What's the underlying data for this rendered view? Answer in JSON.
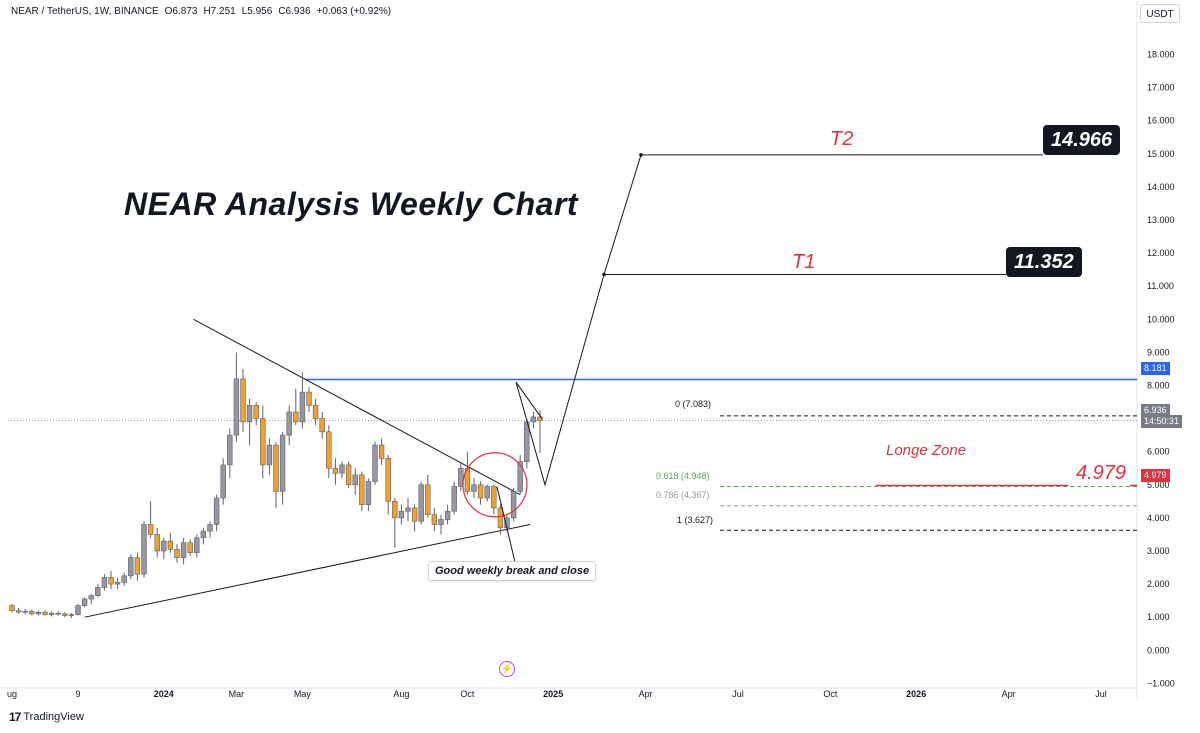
{
  "header": {
    "symbol": "NEAR / TetherUS, 1W, BINANCE",
    "open": "O6.873",
    "high": "H7.251",
    "low": "L5.956",
    "close": "C6.936",
    "change": "+0.063 (+0.92%)",
    "currency": "USDT"
  },
  "branding": {
    "logo_text": "TradingView",
    "logo_icon": "tradingview-logo-icon"
  },
  "annotations": {
    "title": "NEAR Analysis Weekly Chart",
    "t1_label": "T1",
    "t1_value": "11.352",
    "t2_label": "T2",
    "t2_value": "14.966",
    "longe_zone_label": "Longe Zone",
    "longe_zone_value": "4.979",
    "note": "Good weekly break and close",
    "bolt_icon": "lightning-icon"
  },
  "price_tags": {
    "resistance": "8.181",
    "last_price": "6.936",
    "countdown": "14:50:31",
    "zone": "4.979"
  },
  "fib_levels": [
    {
      "label": "0 (7.083)",
      "value": 7.083,
      "color": "#131722"
    },
    {
      "label": "0.618 (4.948)",
      "value": 4.948,
      "color": "#4caf50"
    },
    {
      "label": "0.786 (4.367)",
      "value": 4.367,
      "color": "#9598a1"
    },
    {
      "label": "1 (3.627)",
      "value": 3.627,
      "color": "#131722"
    }
  ],
  "colors": {
    "bull": "#9598a1",
    "bear": "#f0a12b",
    "resistance": "#2962ff",
    "target_red": "#e0333f"
  },
  "chart_data": {
    "type": "candlestick",
    "y_axis": {
      "ticks": [
        "18.000",
        "17.000",
        "16.000",
        "15.000",
        "14.000",
        "13.000",
        "12.000",
        "11.000",
        "10.000",
        "9.000",
        "8.000",
        "6.000",
        "5.000",
        "4.000",
        "3.000",
        "2.000",
        "1.000",
        "0.000",
        "−1.000"
      ],
      "tick_values": [
        18,
        17,
        16,
        15,
        14,
        13,
        12,
        11,
        10,
        9,
        8,
        6,
        5,
        4,
        3,
        2,
        1,
        0,
        -1
      ],
      "ylim": [
        -1.2,
        18.8
      ]
    },
    "x_axis": {
      "ticks": [
        "ug",
        "9",
        "2024",
        "Mar",
        "May",
        "Aug",
        "Oct",
        "2025",
        "Apr",
        "Jul",
        "Oct",
        "2026",
        "Apr",
        "Jul"
      ],
      "tick_bold": [
        false,
        false,
        true,
        false,
        false,
        false,
        false,
        true,
        false,
        false,
        false,
        true,
        false,
        false
      ],
      "tick_index": [
        0,
        10,
        23,
        34,
        44,
        59,
        69,
        82,
        96,
        110,
        124,
        137,
        151,
        165
      ]
    },
    "ohlc": [
      [
        1.35,
        1.4,
        1.15,
        1.2
      ],
      [
        1.2,
        1.28,
        1.1,
        1.15
      ],
      [
        1.15,
        1.25,
        1.08,
        1.18
      ],
      [
        1.18,
        1.22,
        1.05,
        1.1
      ],
      [
        1.1,
        1.2,
        1.05,
        1.15
      ],
      [
        1.15,
        1.2,
        1.05,
        1.08
      ],
      [
        1.08,
        1.18,
        1.02,
        1.12
      ],
      [
        1.12,
        1.18,
        1.05,
        1.1
      ],
      [
        1.1,
        1.15,
        1.0,
        1.05
      ],
      [
        1.05,
        1.12,
        0.98,
        1.08
      ],
      [
        1.08,
        1.4,
        1.05,
        1.35
      ],
      [
        1.35,
        1.6,
        1.3,
        1.55
      ],
      [
        1.55,
        1.7,
        1.4,
        1.65
      ],
      [
        1.65,
        2.0,
        1.6,
        1.9
      ],
      [
        1.9,
        2.3,
        1.8,
        2.2
      ],
      [
        2.2,
        2.4,
        1.85,
        2.0
      ],
      [
        2.0,
        2.2,
        1.85,
        2.05
      ],
      [
        2.05,
        2.35,
        1.95,
        2.25
      ],
      [
        2.25,
        2.9,
        2.15,
        2.8
      ],
      [
        2.8,
        2.95,
        2.1,
        2.3
      ],
      [
        2.3,
        3.9,
        2.2,
        3.8
      ],
      [
        3.8,
        4.5,
        3.4,
        3.5
      ],
      [
        3.5,
        3.7,
        2.8,
        3.0
      ],
      [
        3.0,
        3.4,
        2.75,
        3.3
      ],
      [
        3.3,
        3.55,
        2.95,
        3.05
      ],
      [
        3.05,
        3.2,
        2.65,
        2.8
      ],
      [
        2.8,
        3.4,
        2.6,
        3.25
      ],
      [
        3.25,
        3.35,
        2.85,
        2.95
      ],
      [
        2.95,
        3.5,
        2.8,
        3.4
      ],
      [
        3.4,
        3.7,
        3.2,
        3.6
      ],
      [
        3.6,
        3.9,
        3.4,
        3.8
      ],
      [
        3.8,
        4.7,
        3.6,
        4.6
      ],
      [
        4.6,
        5.8,
        4.4,
        5.6
      ],
      [
        5.6,
        6.7,
        5.2,
        6.5
      ],
      [
        6.5,
        9.0,
        6.3,
        8.2
      ],
      [
        8.2,
        8.5,
        6.6,
        6.9
      ],
      [
        6.9,
        7.6,
        6.2,
        7.4
      ],
      [
        7.4,
        7.5,
        6.8,
        7.0
      ],
      [
        7.0,
        7.4,
        5.2,
        5.6
      ],
      [
        5.6,
        6.4,
        5.3,
        6.2
      ],
      [
        6.2,
        6.3,
        4.3,
        4.8
      ],
      [
        4.8,
        6.6,
        4.4,
        6.5
      ],
      [
        6.5,
        7.4,
        6.2,
        7.2
      ],
      [
        7.2,
        7.9,
        6.8,
        6.9
      ],
      [
        6.9,
        8.4,
        6.7,
        7.8
      ],
      [
        7.8,
        7.95,
        7.2,
        7.4
      ],
      [
        7.4,
        7.6,
        6.8,
        7.0
      ],
      [
        7.0,
        7.2,
        6.4,
        6.6
      ],
      [
        6.6,
        6.8,
        5.2,
        5.5
      ],
      [
        5.5,
        5.8,
        5.0,
        5.35
      ],
      [
        5.35,
        5.7,
        5.2,
        5.6
      ],
      [
        5.6,
        5.7,
        4.9,
        5.0
      ],
      [
        5.0,
        5.5,
        4.7,
        5.3
      ],
      [
        5.3,
        5.4,
        4.2,
        4.4
      ],
      [
        4.4,
        5.2,
        4.2,
        5.1
      ],
      [
        5.1,
        6.3,
        5.0,
        6.2
      ],
      [
        6.2,
        6.4,
        5.6,
        5.8
      ],
      [
        5.8,
        5.9,
        4.1,
        4.5
      ],
      [
        4.5,
        4.6,
        3.1,
        4.0
      ],
      [
        4.0,
        4.4,
        3.8,
        4.2
      ],
      [
        4.2,
        4.6,
        3.9,
        4.3
      ],
      [
        4.3,
        4.4,
        3.6,
        3.9
      ],
      [
        3.9,
        5.1,
        3.8,
        5.0
      ],
      [
        5.0,
        5.3,
        4.0,
        4.1
      ],
      [
        4.1,
        4.3,
        3.6,
        3.8
      ],
      [
        3.8,
        4.1,
        3.5,
        3.95
      ],
      [
        3.95,
        4.4,
        3.8,
        4.2
      ],
      [
        4.2,
        5.1,
        4.1,
        4.95
      ],
      [
        4.95,
        5.7,
        4.8,
        5.5
      ],
      [
        5.5,
        6.0,
        4.7,
        4.8
      ],
      [
        4.8,
        5.2,
        4.6,
        5.0
      ],
      [
        5.0,
        5.1,
        4.4,
        4.6
      ],
      [
        4.6,
        5.0,
        4.5,
        4.95
      ],
      [
        4.95,
        5.0,
        4.1,
        4.3
      ],
      [
        4.3,
        4.4,
        3.5,
        3.7
      ],
      [
        3.7,
        4.1,
        3.6,
        4.0
      ],
      [
        4.0,
        4.9,
        3.9,
        4.8
      ],
      [
        4.8,
        5.9,
        4.7,
        5.7
      ],
      [
        5.7,
        7.0,
        5.5,
        6.9
      ],
      [
        6.9,
        7.2,
        6.7,
        7.05
      ],
      [
        7.05,
        7.25,
        5.96,
        6.94
      ]
    ]
  }
}
